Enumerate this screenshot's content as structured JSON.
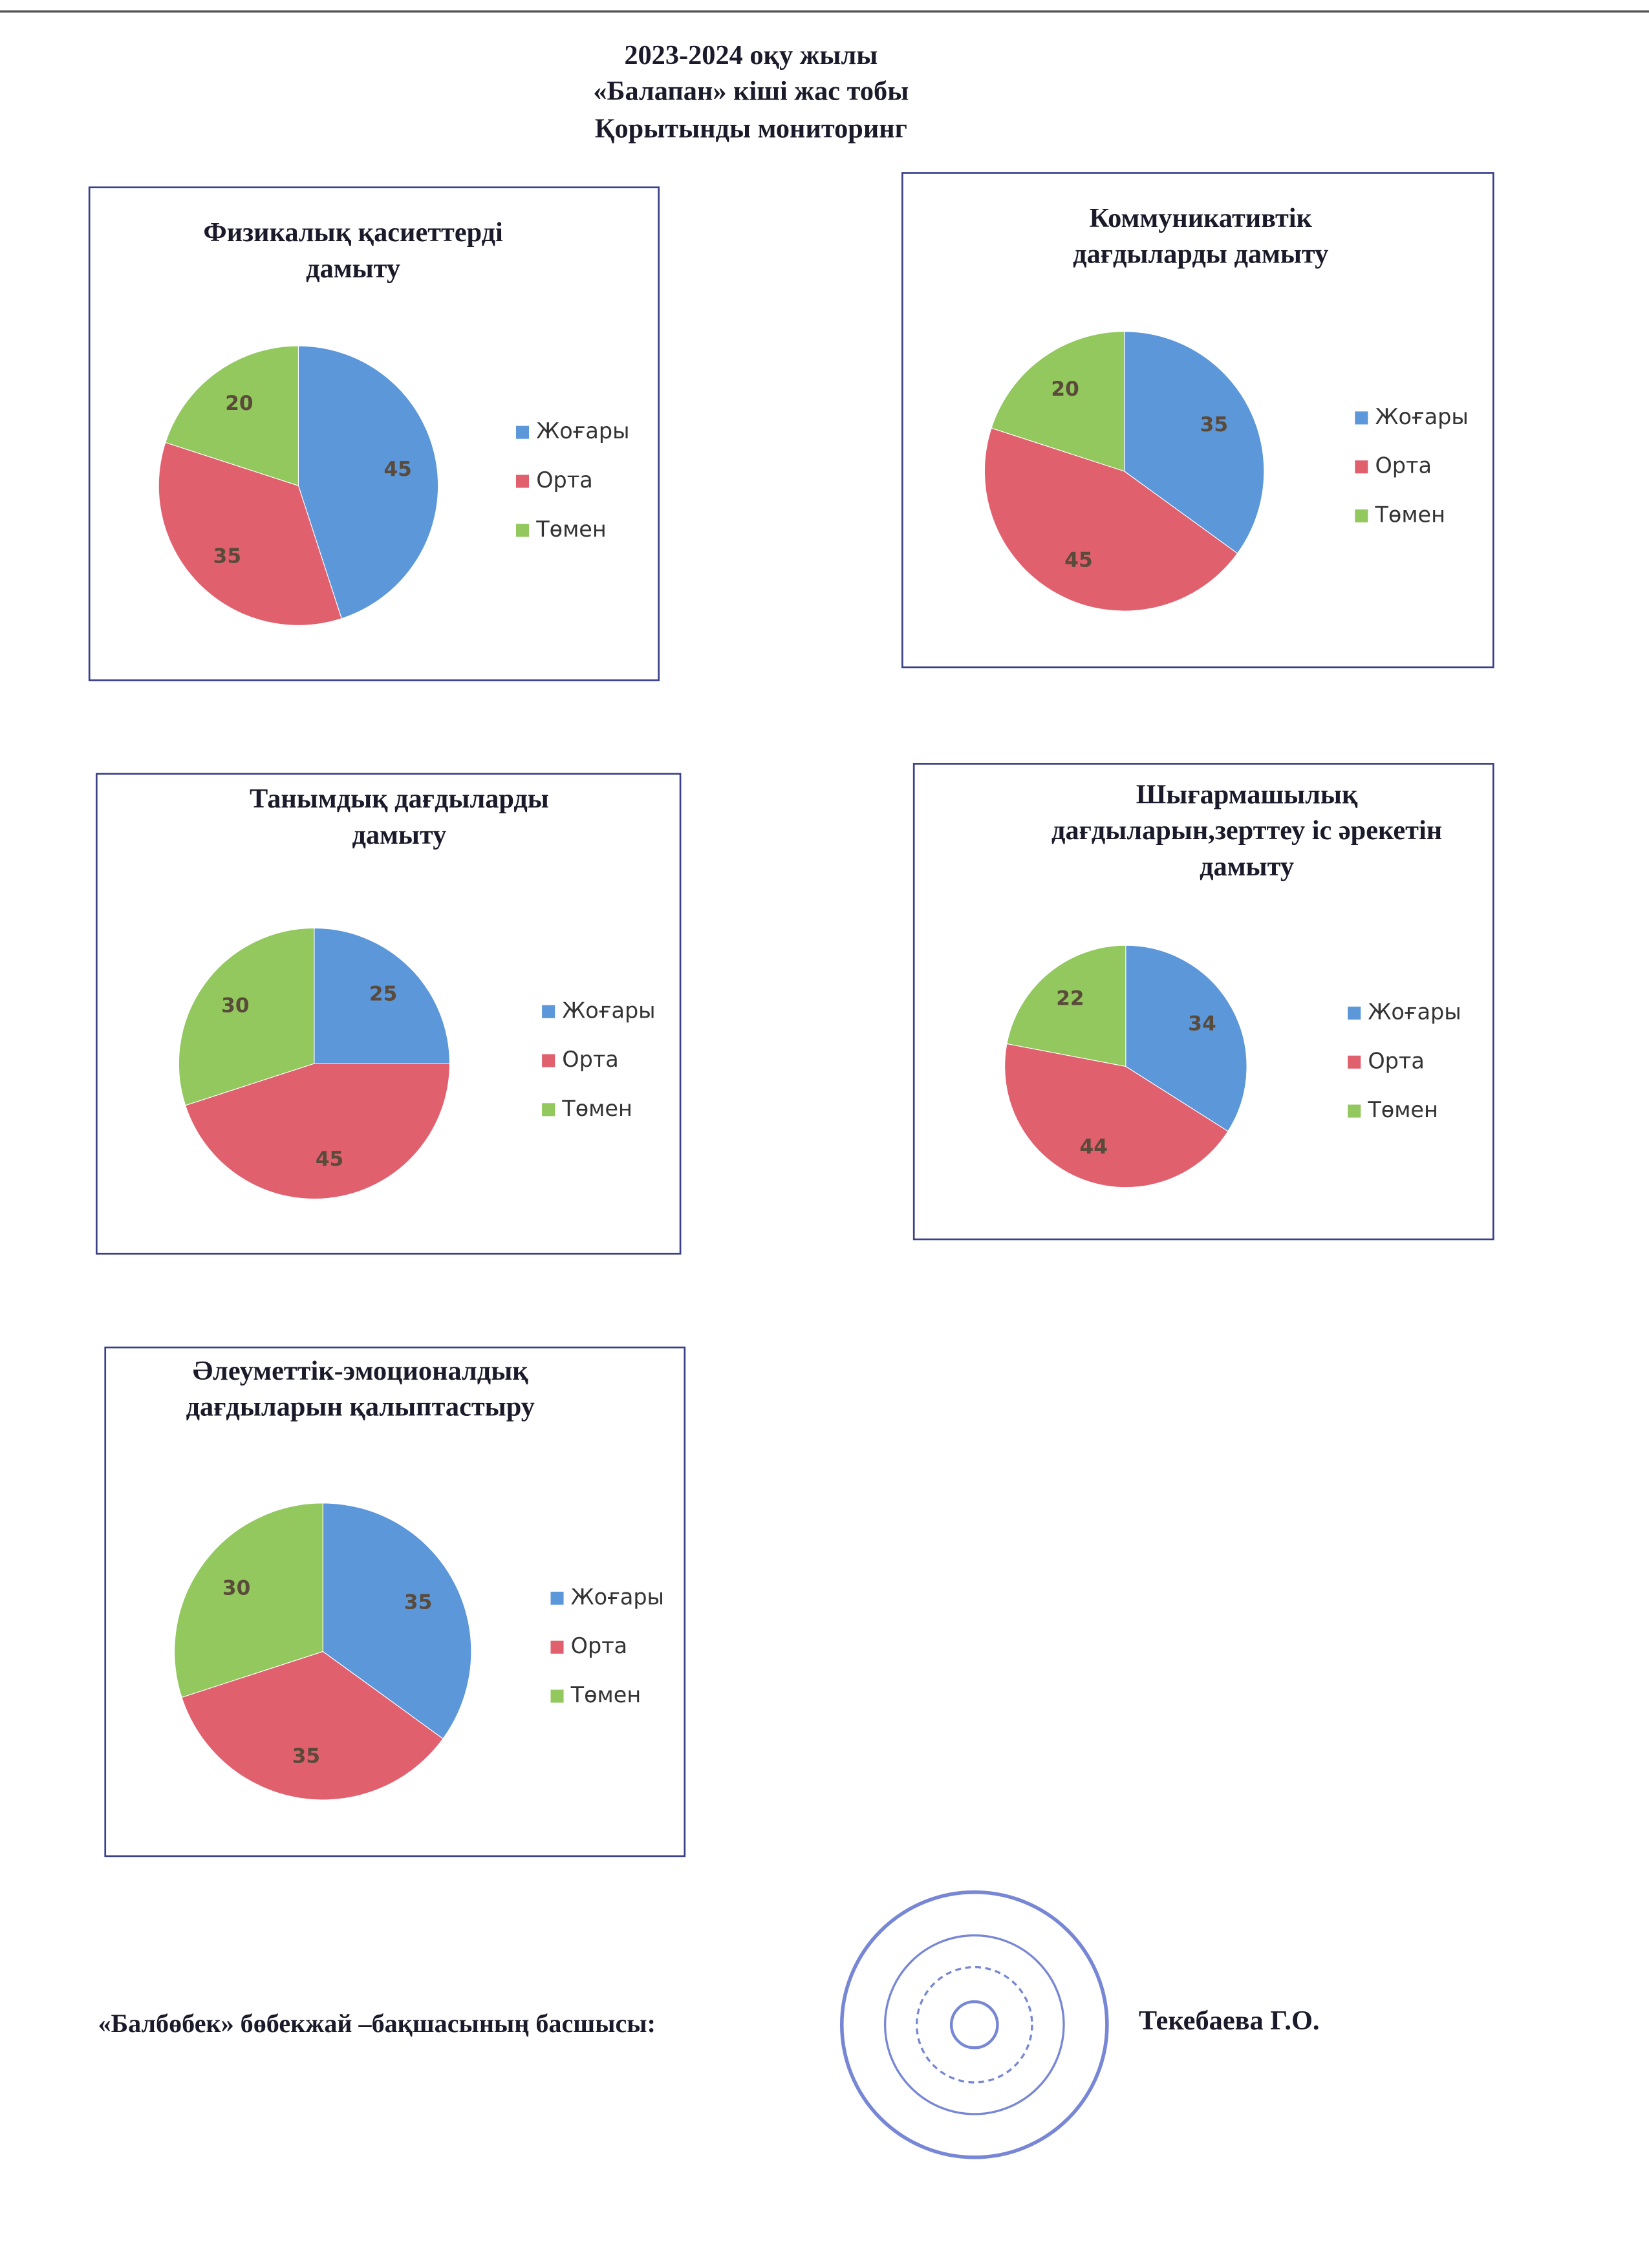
{
  "header": {
    "lines": [
      "2023-2024 оқу жылы",
      "«Балапан»  кіші жас тобы",
      "Қорытынды мониторинг"
    ]
  },
  "chart_data": [
    {
      "type": "pie",
      "title": [
        "Физикалық қасиеттерді",
        "дамыту"
      ],
      "categories": [
        "Жоғары",
        "Орта",
        "Төмен"
      ],
      "values": [
        45,
        35,
        20
      ],
      "colors": [
        "#5b97d9",
        "#e0606e",
        "#92c85e"
      ],
      "legend": "right"
    },
    {
      "type": "pie",
      "title": [
        "Коммуникативтік",
        "дағдыларды дамыту"
      ],
      "categories": [
        "Жоғары",
        "Орта",
        "Төмен"
      ],
      "values": [
        35,
        45,
        20
      ],
      "colors": [
        "#5b97d9",
        "#e0606e",
        "#92c85e"
      ],
      "legend": "right"
    },
    {
      "type": "pie",
      "title": [
        "Танымдық дағдыларды",
        "дамыту"
      ],
      "categories": [
        "Жоғары",
        "Орта",
        "Төмен"
      ],
      "values": [
        25,
        45,
        30
      ],
      "colors": [
        "#5b97d9",
        "#e0606e",
        "#92c85e"
      ],
      "legend": "right"
    },
    {
      "type": "pie",
      "title": [
        "Шығармашылық",
        "дағдыларын,зерттеу іс әрекетін",
        "дамыту"
      ],
      "categories": [
        "Жоғары",
        "Орта",
        "Төмен"
      ],
      "values": [
        34,
        44,
        22
      ],
      "colors": [
        "#5b97d9",
        "#e0606e",
        "#92c85e"
      ],
      "legend": "right"
    },
    {
      "type": "pie",
      "title": [
        "Әлеуметтік-эмоционалдық",
        "дағдыларын  қалыптастыру"
      ],
      "categories": [
        "Жоғары",
        "Орта",
        "Төмен"
      ],
      "values": [
        35,
        35,
        30
      ],
      "colors": [
        "#5b97d9",
        "#e0606e",
        "#92c85e"
      ],
      "legend": "right"
    }
  ],
  "footer": {
    "position": "«Балбөбек» бөбекжай –бақшасының басшысы:",
    "name": "Текебаева Г.О."
  }
}
